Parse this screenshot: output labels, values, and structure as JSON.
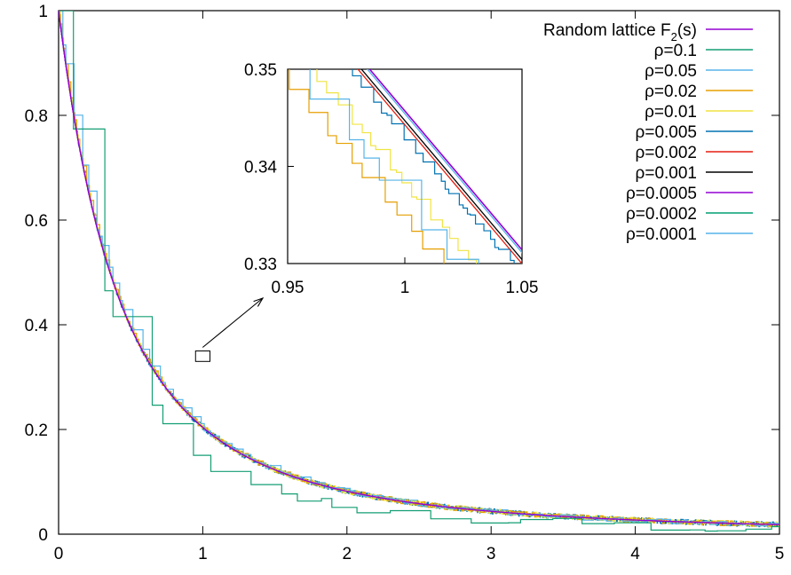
{
  "chart_data": {
    "type": "line",
    "xlim": [
      0,
      5
    ],
    "ylim": [
      0,
      1
    ],
    "xticks": [
      "0",
      "1",
      "2",
      "3",
      "4",
      "5"
    ],
    "yticks": [
      "0",
      "0.2",
      "0.4",
      "0.6",
      "0.8",
      "1"
    ],
    "xlabel": "",
    "ylabel": "",
    "grid": false,
    "legend_position": "top-right",
    "legend_title": "Random lattice F",
    "legend_title_sub": "2",
    "legend_title_tail": "(s)",
    "series": [
      {
        "name": "ρ=0.1",
        "color": "#139e73",
        "step": 0.15
      },
      {
        "name": "ρ=0.05",
        "color": "#56b4e9",
        "step": 0.04
      },
      {
        "name": "ρ=0.02",
        "color": "#e69f00",
        "step": 0.012
      },
      {
        "name": "ρ=0.01",
        "color": "#f0e442",
        "step": 0.006
      },
      {
        "name": "ρ=0.005",
        "color": "#0072b2",
        "step": 0.003
      },
      {
        "name": "ρ=0.002",
        "color": "#e51e10",
        "step": 0
      },
      {
        "name": "ρ=0.001",
        "color": "#000000",
        "step": 0
      },
      {
        "name": "ρ=0.0005",
        "color": "#9400d3",
        "step": 0
      },
      {
        "name": "ρ=0.0002",
        "color": "#009e73",
        "step": 0
      },
      {
        "name": "ρ=0.0001",
        "color": "#56b4e9",
        "step": 0
      }
    ],
    "reference_color": "#9400d3",
    "inset": {
      "xlim": [
        0.95,
        1.05
      ],
      "ylim": [
        0.33,
        0.35
      ],
      "xticks": [
        "0.95",
        "1",
        "1.05"
      ],
      "yticks": [
        "0.33",
        "0.34",
        "0.35"
      ]
    }
  }
}
